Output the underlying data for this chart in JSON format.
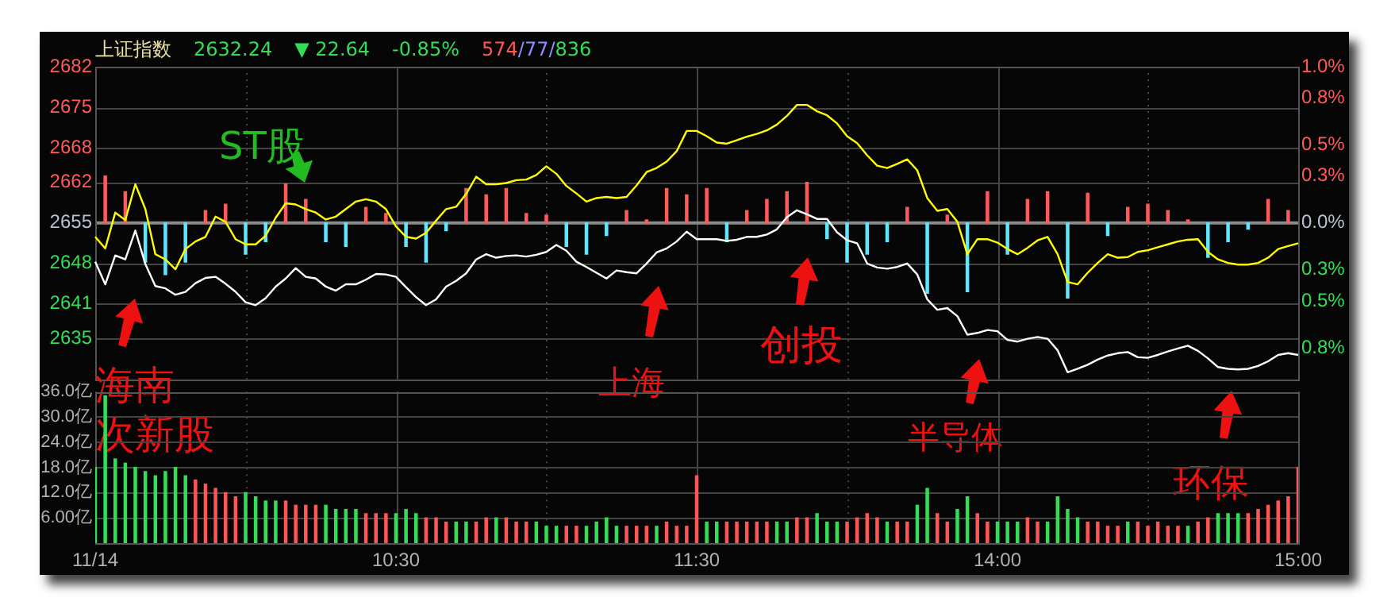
{
  "chart_data": [
    {
      "type": "line",
      "title": "上证指数",
      "annotations": [
        "2632.24",
        "▼ 22.64",
        "-0.85%",
        "574/77/836",
        "海南",
        "次新股",
        "ST股",
        "上海",
        "创投",
        "半导体",
        "环保"
      ],
      "categories": [
        null,
        null,
        null,
        null,
        null,
        null,
        null,
        null,
        null,
        null,
        null,
        null,
        null,
        null,
        null,
        null,
        null,
        null,
        null,
        null,
        null,
        null,
        null,
        null,
        null,
        null,
        null,
        null,
        null,
        null,
        null,
        null,
        null,
        null,
        null,
        null,
        null,
        null,
        null,
        null,
        null,
        null,
        null,
        null,
        null,
        null,
        null,
        null,
        null,
        null,
        null,
        null,
        null,
        null,
        null,
        null,
        null,
        null,
        null,
        null,
        null,
        null,
        null,
        null,
        null,
        null,
        null,
        null,
        null,
        null,
        null,
        null,
        null,
        null,
        null,
        null,
        null,
        null,
        null,
        null,
        null,
        null,
        null,
        null,
        null,
        null,
        null,
        null,
        null,
        null,
        null,
        null,
        null,
        null,
        null,
        null,
        null,
        null,
        null,
        null,
        null,
        null,
        null,
        null,
        null,
        null,
        null,
        null,
        null,
        null,
        null,
        null,
        null,
        null,
        null,
        null,
        null,
        null,
        null,
        null,
        null
      ],
      "series": [
        {
          "color": "#ffffff",
          "values": [
            2648.3,
            2644.4,
            2649.4,
            2648.7,
            2653.7,
            2647.9,
            2644.1,
            2643.7,
            2642.6,
            2643.1,
            2644.6,
            2645.5,
            2645.7,
            2644.5,
            2643.1,
            2641.3,
            2640.8,
            2642.0,
            2644.0,
            2645.4,
            2647.2,
            2645.7,
            2645.4,
            2644.0,
            2643.3,
            2644.4,
            2644.4,
            2645.2,
            2646.2,
            2646.1,
            2645.7,
            2643.9,
            2642.2,
            2640.8,
            2641.8,
            2644.0,
            2645.0,
            2646.3,
            2648.7,
            2649.6,
            2649.0,
            2649.3,
            2649.4,
            2649.2,
            2649.5,
            2650.0,
            2651.2,
            2650.2,
            2648.3,
            2647.4,
            2646.4,
            2645.4,
            2646.8,
            2646.5,
            2646.3,
            2648.0,
            2649.9,
            2650.6,
            2651.8,
            2653.5,
            2652.2,
            2652.2,
            2652.2,
            2651.9,
            2652.1,
            2652.6,
            2652.6,
            2653.0,
            2653.9,
            2656.0,
            2657.2,
            2656.5,
            2655.7,
            2655.7,
            2653.4,
            2652.0,
            2651.5,
            2648.0,
            2647.3,
            2647.1,
            2647.4,
            2648.0,
            2646.1,
            2641.8,
            2640.0,
            2640.3,
            2638.9,
            2635.7,
            2636.0,
            2636.5,
            2636.3,
            2634.8,
            2634.5,
            2635.0,
            2635.3,
            2635.0,
            2633.0,
            2629.2,
            2629.8,
            2630.5,
            2631.4,
            2632.1,
            2632.5,
            2632.7,
            2631.8,
            2631.7,
            2632.2,
            2632.8,
            2633.3,
            2633.8,
            2632.9,
            2631.6,
            2630.1,
            2629.8,
            2629.7,
            2629.8,
            2630.3,
            2631.1,
            2632.2,
            2632.5,
            2632.2
          ]
        },
        {
          "color": "#ffff00",
          "values": [
            2652.6,
            2650.6,
            2656.8,
            2655.5,
            2661.7,
            2657.4,
            2649.6,
            2648.7,
            2647.0,
            2650.5,
            2651.8,
            2652.6,
            2656.1,
            2655.2,
            2652.2,
            2651.3,
            2651.3,
            2652.8,
            2655.9,
            2658.4,
            2658.2,
            2657.4,
            2656.8,
            2655.6,
            2656.1,
            2657.4,
            2658.7,
            2659.1,
            2658.7,
            2657.4,
            2654.4,
            2652.6,
            2652.3,
            2653.3,
            2655.4,
            2657.4,
            2657.8,
            2660.0,
            2663.0,
            2661.7,
            2661.7,
            2661.9,
            2662.4,
            2662.5,
            2663.3,
            2664.8,
            2663.5,
            2661.4,
            2660.1,
            2658.7,
            2659.3,
            2659.5,
            2659.3,
            2659.5,
            2661.5,
            2663.8,
            2664.5,
            2665.6,
            2667.4,
            2670.9,
            2670.9,
            2670.0,
            2668.9,
            2668.7,
            2669.3,
            2669.9,
            2670.4,
            2671.0,
            2672.0,
            2673.5,
            2675.4,
            2675.4,
            2674.3,
            2673.6,
            2672.2,
            2670.0,
            2668.8,
            2666.7,
            2664.9,
            2664.5,
            2665.2,
            2666.0,
            2664.1,
            2659.3,
            2657.1,
            2657.4,
            2655.2,
            2649.6,
            2652.2,
            2652.2,
            2651.6,
            2650.5,
            2649.6,
            2650.7,
            2652.0,
            2652.6,
            2649.6,
            2644.8,
            2644.4,
            2646.4,
            2648.1,
            2649.6,
            2649.0,
            2649.1,
            2650.0,
            2650.3,
            2650.8,
            2651.3,
            2651.8,
            2652.1,
            2652.2,
            2650.0,
            2648.7,
            2648.1,
            2647.8,
            2647.8,
            2648.1,
            2649.0,
            2650.5,
            2651.0,
            2651.5
          ]
        },
        {
          "type": "bar",
          "axis": "y2",
          "values": [
            null,
            0.3,
            null,
            0.2,
            null,
            -0.25,
            null,
            -0.33,
            null,
            -0.25,
            null,
            0.08,
            null,
            0.12,
            null,
            -0.2,
            null,
            -0.12,
            null,
            0.25,
            null,
            0.15,
            null,
            -0.12,
            null,
            -0.15,
            null,
            0.1,
            null,
            0.06,
            null,
            -0.15,
            null,
            -0.25,
            null,
            -0.05,
            null,
            0.22,
            null,
            0.18,
            null,
            0.22,
            null,
            0.06,
            null,
            0.05,
            null,
            -0.15,
            null,
            -0.2,
            null,
            -0.08,
            null,
            0.08,
            null,
            0.02,
            null,
            0.22,
            null,
            0.18,
            null,
            0.22,
            null,
            -0.12,
            null,
            0.08,
            null,
            0.15,
            null,
            0.2,
            null,
            0.26,
            null,
            -0.1,
            null,
            -0.25,
            null,
            -0.2,
            null,
            -0.12,
            null,
            0.1,
            null,
            -0.45,
            null,
            0.05,
            null,
            -0.44,
            null,
            0.2,
            null,
            -0.2,
            null,
            0.15,
            null,
            0.2,
            null,
            -0.48,
            null,
            0.19,
            null,
            -0.08,
            null,
            0.1,
            null,
            0.12,
            null,
            0.08,
            null,
            0.02,
            null,
            -0.22,
            null,
            -0.12,
            null,
            -0.04,
            null,
            0.15,
            null,
            0.08,
            null
          ],
          "colors": [
            null,
            "#ff5a5a",
            null,
            "#ff5a5a",
            null,
            "#5ee6ff",
            null,
            "#5ee6ff",
            null,
            "#5ee6ff",
            null,
            "#ff5a5a",
            null,
            "#ff5a5a",
            null,
            "#5ee6ff",
            null,
            "#5ee6ff",
            null,
            "#ff5a5a",
            null,
            "#ff5a5a",
            null,
            "#5ee6ff",
            null,
            "#5ee6ff",
            null,
            "#ff5a5a",
            null,
            "#ff5a5a",
            null,
            "#5ee6ff",
            null,
            "#5ee6ff",
            null,
            "#5ee6ff",
            null,
            "#ff5a5a",
            null,
            "#ff5a5a",
            null,
            "#ff5a5a",
            null,
            "#ff5a5a",
            null,
            "#ff5a5a",
            null,
            "#5ee6ff",
            null,
            "#5ee6ff",
            null,
            "#5ee6ff",
            null,
            "#ff5a5a",
            null,
            "#ff5a5a",
            null,
            "#ff5a5a",
            null,
            "#ff5a5a",
            null,
            "#ff5a5a",
            null,
            "#5ee6ff",
            null,
            "#ff5a5a",
            null,
            "#ff5a5a",
            null,
            "#ff5a5a",
            null,
            "#ff5a5a",
            null,
            "#5ee6ff",
            null,
            "#5ee6ff",
            null,
            "#5ee6ff",
            null,
            "#5ee6ff",
            null,
            "#ff5a5a",
            null,
            "#5ee6ff",
            null,
            "#ff5a5a",
            null,
            "#5ee6ff",
            null,
            "#ff5a5a",
            null,
            "#5ee6ff",
            null,
            "#ff5a5a",
            null,
            "#ff5a5a",
            null,
            "#5ee6ff",
            null,
            "#ff5a5a",
            null,
            "#5ee6ff",
            null,
            "#ff5a5a",
            null,
            "#ff5a5a",
            null,
            "#ff5a5a",
            null,
            "#ff5a5a",
            null,
            "#5ee6ff",
            null,
            "#5ee6ff",
            null,
            "#5ee6ff",
            null,
            "#ff5a5a",
            null,
            "#ff5a5a",
            null
          ]
        }
      ],
      "ylim": [
        2628,
        2682
      ],
      "yticks": [
        2635,
        2641,
        2648,
        2655,
        2662,
        2668,
        2675,
        2682
      ],
      "y2lim": [
        -1.0,
        1.0
      ],
      "y2ticks": [
        {
          "value": 1.0,
          "label": "1.0%"
        },
        {
          "value": 0.8,
          "label": "0.8%"
        },
        {
          "value": 0.5,
          "label": "0.5%"
        },
        {
          "value": 0.3,
          "label": "0.3%"
        },
        {
          "value": 0,
          "label": "0.0%"
        },
        {
          "value": -0.3,
          "label": "0.3%"
        },
        {
          "value": -0.5,
          "label": "0.5%"
        },
        {
          "value": -0.8,
          "label": "0.8%"
        }
      ],
      "ref_lines": [
        {
          "axis": "y2",
          "value": 0,
          "color": "#8a8a8a"
        }
      ],
      "grid": true,
      "marker": "none",
      "tick_labels": "y"
    },
    {
      "type": "bar",
      "categories": [
        "11/14",
        null,
        null,
        null,
        null,
        null,
        null,
        null,
        null,
        null,
        null,
        null,
        null,
        null,
        null,
        null,
        null,
        null,
        null,
        null,
        null,
        null,
        null,
        null,
        null,
        null,
        null,
        null,
        null,
        null,
        "10:30",
        null,
        null,
        null,
        null,
        null,
        null,
        null,
        null,
        null,
        null,
        null,
        null,
        null,
        null,
        null,
        null,
        null,
        null,
        null,
        null,
        null,
        null,
        null,
        null,
        null,
        null,
        null,
        null,
        null,
        "11:30",
        null,
        null,
        null,
        null,
        null,
        null,
        null,
        null,
        null,
        null,
        null,
        null,
        null,
        null,
        null,
        null,
        null,
        null,
        null,
        null,
        null,
        null,
        null,
        null,
        null,
        null,
        null,
        null,
        null,
        "14:00",
        null,
        null,
        null,
        null,
        null,
        null,
        null,
        null,
        null,
        null,
        null,
        null,
        null,
        null,
        null,
        null,
        null,
        null,
        null,
        null,
        null,
        null,
        null,
        null,
        null,
        null,
        null,
        null,
        null,
        "15:00"
      ],
      "values": [
        18,
        35,
        20,
        19,
        18,
        17,
        16,
        17,
        18,
        16,
        15,
        14,
        13,
        12,
        11,
        12,
        11,
        10,
        10,
        10,
        9,
        9,
        9,
        9,
        8,
        8,
        8,
        7,
        7,
        7,
        7,
        8,
        7,
        6,
        6,
        5,
        5,
        5,
        5,
        6,
        6,
        6,
        5,
        5,
        5,
        4,
        4,
        4,
        4,
        4,
        5,
        6,
        4,
        4,
        4,
        4,
        4,
        5,
        4,
        4,
        16,
        5,
        5,
        5,
        5,
        5,
        5,
        5,
        5,
        5,
        6,
        6,
        7,
        5,
        5,
        5,
        6,
        7,
        6,
        5,
        5,
        5,
        9,
        13,
        7,
        5,
        8,
        11,
        7,
        5,
        5,
        5,
        5,
        6,
        5,
        5,
        11,
        8,
        6,
        5,
        5,
        4,
        4,
        5,
        5,
        4,
        5,
        4,
        4,
        4,
        5,
        6,
        7,
        7,
        7,
        7,
        8,
        9,
        10,
        11,
        18
      ],
      "colors": [
        "#33dd55",
        "#33dd55",
        "#33dd55",
        "#33dd55",
        "#33dd55",
        "#33dd55",
        "#33dd55",
        "#33dd55",
        "#33dd55",
        "#33dd55",
        "#ff5555",
        "#ff5555",
        "#ff5555",
        "#ff5555",
        "#ff5555",
        "#33dd55",
        "#33dd55",
        "#33dd55",
        "#33dd55",
        "#ff5555",
        "#ff5555",
        "#ff5555",
        "#ff5555",
        "#33dd55",
        "#33dd55",
        "#33dd55",
        "#33dd55",
        "#ff5555",
        "#ff5555",
        "#ff5555",
        "#33dd55",
        "#33dd55",
        "#33dd55",
        "#ff5555",
        "#ff5555",
        "#ff5555",
        "#33dd55",
        "#33dd55",
        "#ff5555",
        "#ff5555",
        "#33dd55",
        "#ff5555",
        "#ff5555",
        "#ff5555",
        "#33dd55",
        "#33dd55",
        "#33dd55",
        "#ff5555",
        "#ff5555",
        "#33dd55",
        "#33dd55",
        "#33dd55",
        "#33dd55",
        "#ff5555",
        "#ff5555",
        "#ff5555",
        "#33dd55",
        "#ff5555",
        "#ff5555",
        "#ff5555",
        "#ff5555",
        "#33dd55",
        "#33dd55",
        "#ff5555",
        "#ff5555",
        "#ff5555",
        "#ff5555",
        "#ff5555",
        "#33dd55",
        "#33dd55",
        "#ff5555",
        "#ff5555",
        "#33dd55",
        "#33dd55",
        "#33dd55",
        "#ff5555",
        "#ff5555",
        "#ff5555",
        "#ff5555",
        "#33dd55",
        "#ff5555",
        "#ff5555",
        "#33dd55",
        "#33dd55",
        "#ff5555",
        "#ff5555",
        "#33dd55",
        "#33dd55",
        "#ff5555",
        "#ff5555",
        "#33dd55",
        "#33dd55",
        "#33dd55",
        "#ff5555",
        "#ff5555",
        "#33dd55",
        "#33dd55",
        "#33dd55",
        "#33dd55",
        "#ff5555",
        "#ff5555",
        "#ff5555",
        "#ff5555",
        "#33dd55",
        "#ff5555",
        "#ff5555",
        "#ff5555",
        "#ff5555",
        "#ff5555",
        "#33dd55",
        "#ff5555",
        "#ff5555",
        "#33dd55",
        "#33dd55",
        "#33dd55",
        "#ff5555",
        "#ff5555",
        "#ff5555",
        "#ff5555",
        "#ff5555",
        "#ff5555"
      ],
      "ylim": [
        0,
        36
      ],
      "yticks": [
        {
          "value": 6,
          "label": "6.00亿"
        },
        {
          "value": 12,
          "label": "12.0亿"
        },
        {
          "value": 18,
          "label": "18.0亿"
        },
        {
          "value": 24,
          "label": "24.0亿"
        },
        {
          "value": 30,
          "label": "30.0亿"
        },
        {
          "value": 36,
          "label": "36.0亿"
        }
      ],
      "grid": true
    }
  ]
}
